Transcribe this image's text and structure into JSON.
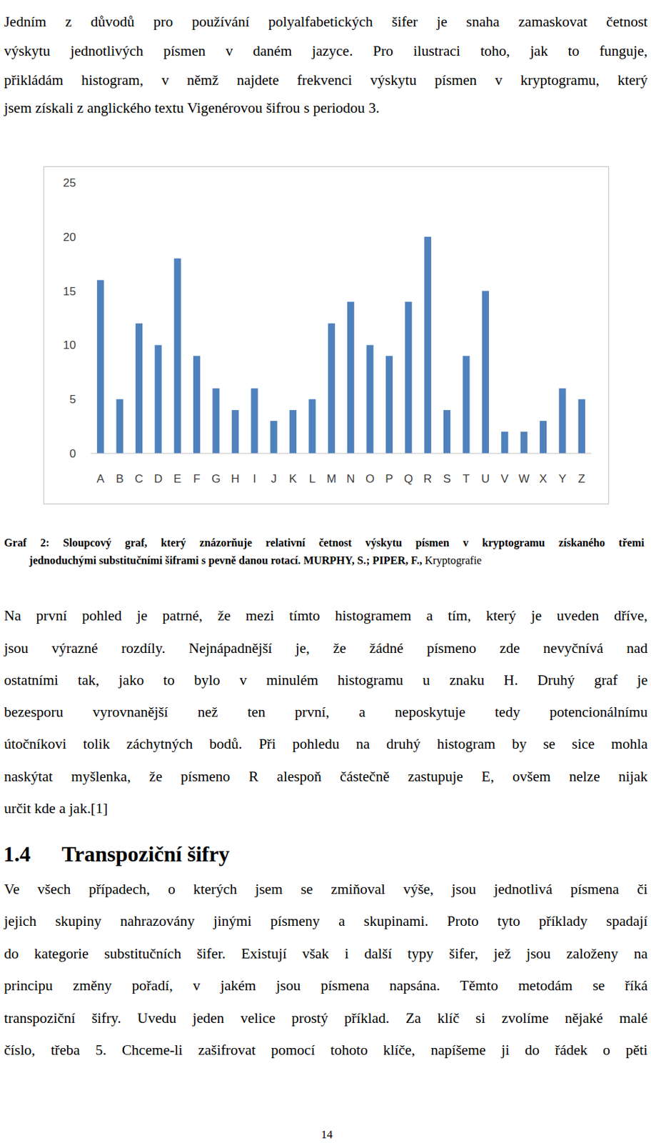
{
  "paragraph_1": {
    "lines": [
      "Jedním z důvodů  pro používání polyalfabetických šifer je snaha zamaskovat četnost",
      "výskytu jednotlivých písmen v daném jazyce. Pro ilustraci toho, jak to funguje,",
      "přikládám histogram, v němž najdete frekvenci výskytu písmen v kryptogramu, který",
      "jsem získali z anglického textu Vigenérovou šifrou s periodou 3."
    ]
  },
  "chart_data": {
    "type": "bar",
    "categories": [
      "A",
      "B",
      "C",
      "D",
      "E",
      "F",
      "G",
      "H",
      "I",
      "J",
      "K",
      "L",
      "M",
      "N",
      "O",
      "P",
      "Q",
      "R",
      "S",
      "T",
      "U",
      "V",
      "W",
      "X",
      "Y",
      "Z"
    ],
    "values": [
      16,
      5,
      12,
      10,
      18,
      9,
      6,
      4,
      6,
      3,
      4,
      5,
      12,
      14,
      10,
      9,
      14,
      20,
      4,
      9,
      15,
      2,
      2,
      3,
      6,
      5
    ],
    "color": "#4f81bd",
    "ylim": [
      0,
      25
    ],
    "yticks": [
      0,
      5,
      10,
      15,
      20,
      25
    ],
    "grid": false
  },
  "caption": {
    "lines": [
      [
        {
          "text": "Graf 2: Sloupcový graf, který znázorňuje relativní četnost výskytu písmen v kryptogramu získaného třemi",
          "bold": true
        }
      ],
      [
        {
          "text": "jednoduchými substitučními šiframi s pevně danou rotací. MURPHY, S.; PIPER, F.,",
          "bold": true
        },
        {
          "text": "Kryptografie",
          "bold": false
        }
      ]
    ]
  },
  "paragraph_2": {
    "lines": [
      "Na první pohled je patrné, že mezi tímto histogramem a tím, který je uveden dříve,",
      "jsou výrazné rozdíly. Nejnápadnější je, že žádné písmeno zde nevyčnívá nad",
      "ostatními tak, jako to bylo v minulém histogramu u znaku H. Druhý graf je",
      "bezesporu vyrovnanější než ten první, a neposkytuje tedy potencionálnímu",
      "útočníkovi tolik záchytných bodů. Při pohledu na druhý histogram by se sice mohla",
      "naskýtat myšlenka, že písmeno R alespoň částečně zastupuje E, ovšem nelze nijak",
      "určit kde a jak.[1]"
    ]
  },
  "heading": {
    "number": "1.4",
    "title": "Transpoziční šifry"
  },
  "paragraph_3": {
    "lines": [
      "Ve všech případech, o kterých jsem se zmiňoval výše, jsou jednotlivá písmena či",
      "jejich skupiny nahrazovány jinými písmeny a skupinami. Proto tyto příklady spadají",
      "do kategorie substitučních šifer. Existují však i další typy šifer, jež jsou založeny na",
      "principu změny pořadí, v jakém jsou písmena napsána. Těmto metodám se říká",
      "transpoziční šifry. Uvedu jeden velice prostý příklad. Za klíč si zvolíme nějaké malé",
      "číslo, třeba 5. Chceme-li zašifrovat pomocí tohoto klíče, napíšeme ji do řádek o pěti"
    ]
  },
  "page_number": 14
}
